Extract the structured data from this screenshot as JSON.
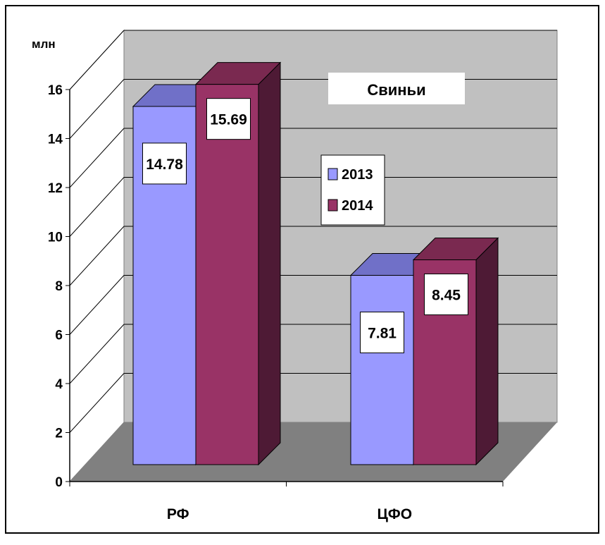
{
  "chart_data": {
    "type": "bar",
    "title": "Свиньи",
    "ylabel": "млн",
    "categories": [
      "РФ",
      "ЦФО"
    ],
    "series": [
      {
        "name": "2013",
        "values": [
          14.78,
          7.81
        ],
        "color": "#9999ff",
        "top_color": "#7070c8"
      },
      {
        "name": "2014",
        "values": [
          15.69,
          8.45
        ],
        "color": "#993366",
        "top_color": "#7a2950",
        "side_color": "#4e1a35"
      }
    ],
    "ylim": [
      0,
      16
    ],
    "yticks": [
      "0",
      "2",
      "4",
      "6",
      "8",
      "10",
      "12",
      "14",
      "16"
    ],
    "data_labels": [
      [
        "14.78",
        "7.81"
      ],
      [
        "15.69",
        "8.45"
      ]
    ],
    "grid": true,
    "legend_position": "center",
    "chart_style": "3d-clustered-column",
    "colors": {
      "back_wall": "#c0c0c0",
      "floor": "#808080",
      "gridline": "#000000"
    }
  }
}
